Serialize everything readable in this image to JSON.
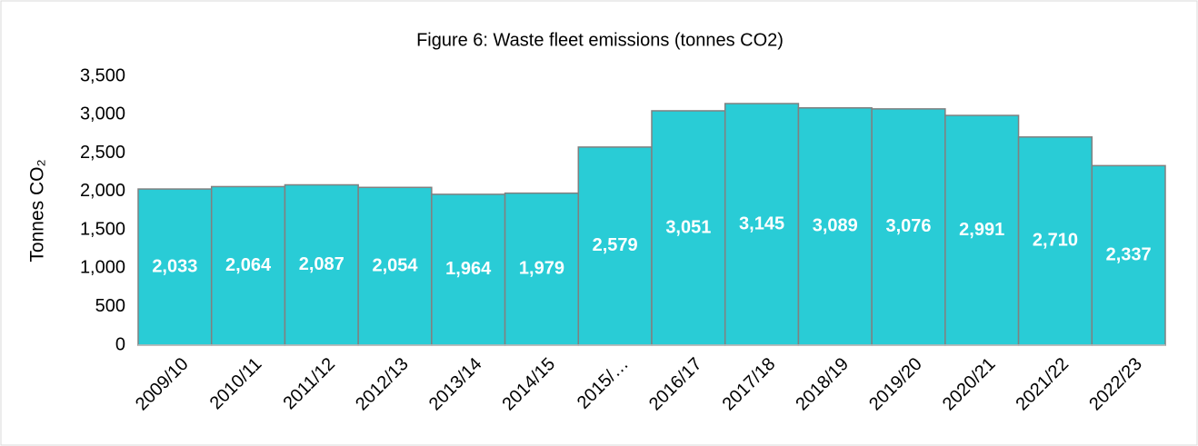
{
  "chart_data": {
    "type": "bar",
    "title": "Figure 6: Waste fleet emissions (tonnes CO2)",
    "y_label": "Tonnes CO₂",
    "categories": [
      "2009/10",
      "2010/11",
      "2011/12",
      "2012/13",
      "2013/14",
      "2014/15",
      "2015/…",
      "2016/17",
      "2017/18",
      "2018/19",
      "2019/20",
      "2020/21",
      "2021/22",
      "2022/23"
    ],
    "values": [
      2033,
      2064,
      2087,
      2054,
      1964,
      1979,
      2579,
      3051,
      3145,
      3089,
      3076,
      2991,
      2710,
      2337
    ],
    "value_labels": [
      "2,033",
      "2,064",
      "2,087",
      "2,054",
      "1,964",
      "1,979",
      "2,579",
      "3,051",
      "3,145",
      "3,089",
      "3,076",
      "2,991",
      "2,710",
      "2,337"
    ],
    "color": "#29ccd6",
    "edge_color": "#808080",
    "ylim": [
      0,
      3500
    ],
    "yticks": [
      0,
      500,
      {
        "value": 1000,
        "label": "1,000"
      },
      {
        "value": 1500,
        "label": "1,500"
      },
      {
        "value": 2000,
        "label": "2,000"
      },
      {
        "value": 2500,
        "label": "2,500"
      },
      {
        "value": 3000,
        "label": "3,000"
      },
      {
        "value": 3500,
        "label": "3,500"
      }
    ],
    "grid": false
  }
}
